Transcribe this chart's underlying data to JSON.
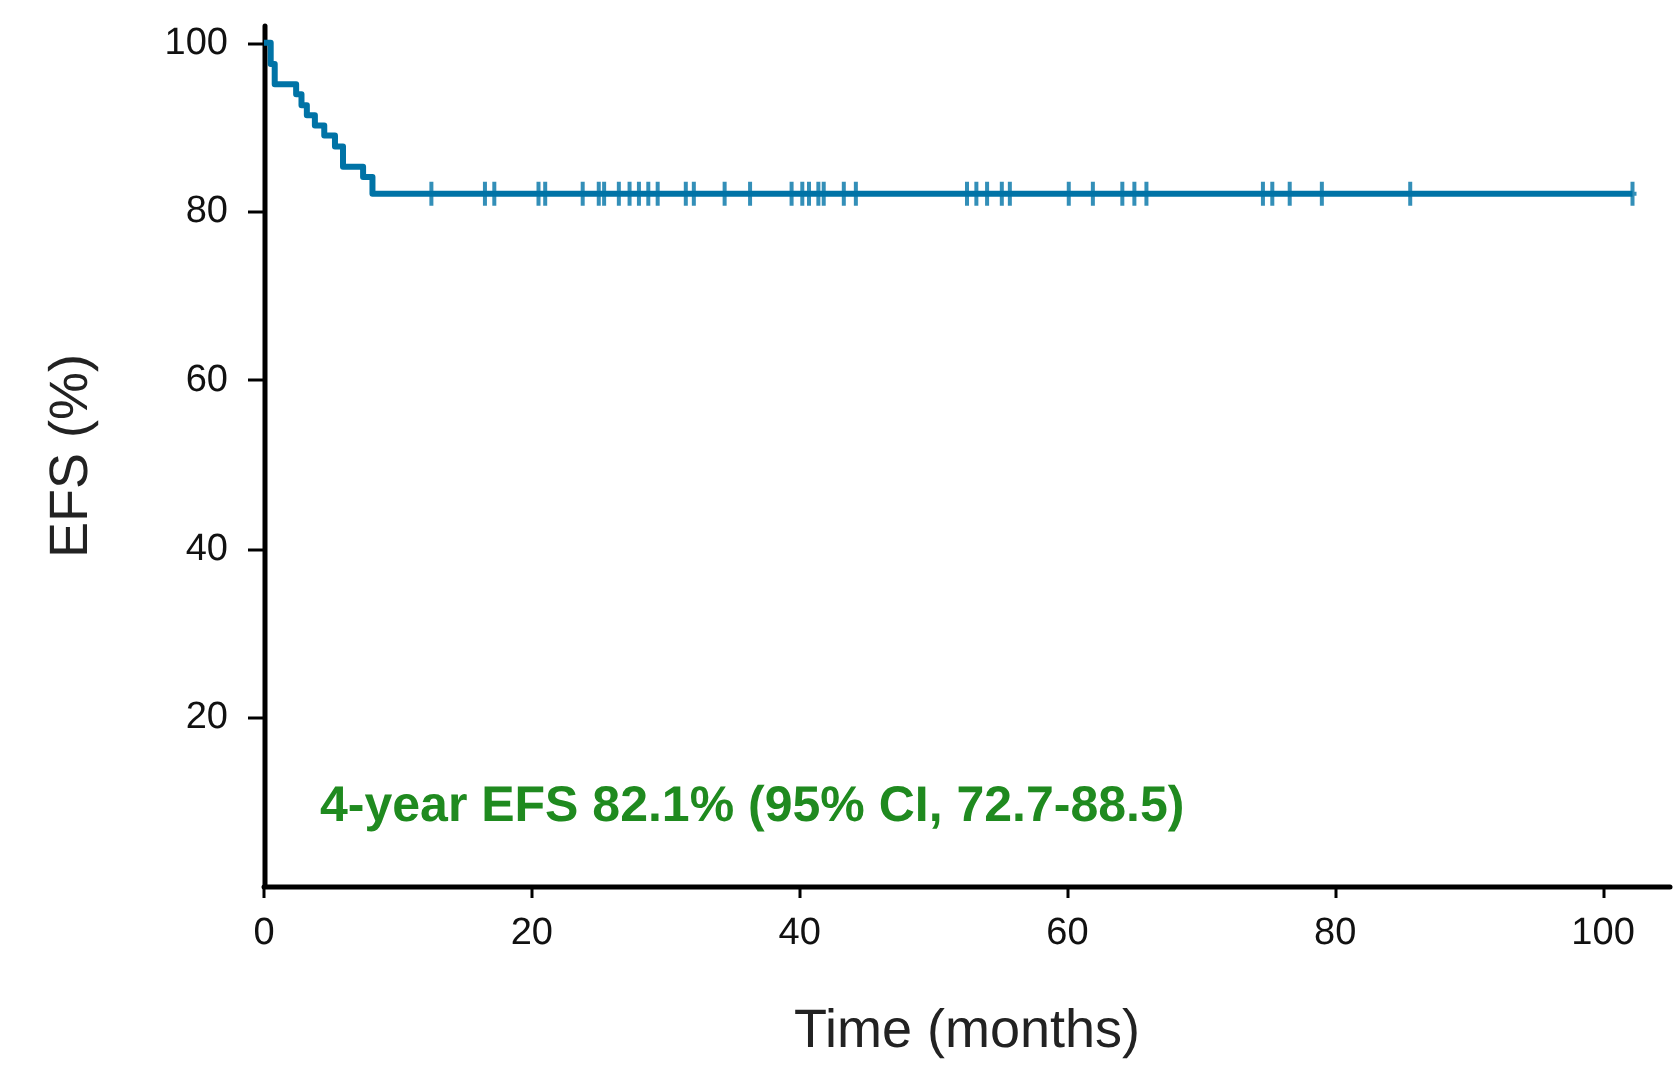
{
  "chart_data": {
    "type": "step",
    "xlabel": "Time (months)",
    "ylabel": "EFS (%)",
    "xlim": [
      0,
      105
    ],
    "xticks": [
      0,
      20,
      40,
      60,
      80,
      100
    ],
    "ylim": [
      0,
      102
    ],
    "yticks": [
      20,
      40,
      60,
      80,
      100
    ],
    "series": [
      {
        "type": "step",
        "color": "#0073a6",
        "marker": "none",
        "x": [
          0,
          0.5,
          0.8,
          2.4,
          2.8,
          3.2,
          3.8,
          4.5,
          5.3,
          5.9,
          7.4,
          8.1,
          102.2
        ],
        "values": [
          100,
          97.5,
          95.1,
          93.9,
          92.6,
          91.4,
          90.2,
          89.0,
          87.7,
          85.3,
          84.1,
          82.1,
          82.1
        ]
      },
      {
        "type": "scatter",
        "color": "#0073a6",
        "marker": "cross",
        "x": [
          12.5,
          16.5,
          17.2,
          20.5,
          21,
          23.8,
          25,
          25.4,
          26.5,
          27.3,
          28,
          28.7,
          29.4,
          31.5,
          32.1,
          34.4,
          36.3,
          39.4,
          40.2,
          40.7,
          41.4,
          41.8,
          43.3,
          44.2,
          52.5,
          53.2,
          54,
          55.1,
          55.7,
          60.1,
          61.9,
          64.1,
          65,
          65.9,
          74.6,
          75.3,
          76.6,
          79,
          85.6,
          102.2
        ],
        "values": [
          82.1,
          82.1,
          82.1,
          82.1,
          82.1,
          82.1,
          82.1,
          82.1,
          82.1,
          82.1,
          82.1,
          82.1,
          82.1,
          82.1,
          82.1,
          82.1,
          82.1,
          82.1,
          82.1,
          82.1,
          82.1,
          82.1,
          82.1,
          82.1,
          82.1,
          82.1,
          82.1,
          82.1,
          82.1,
          82.1,
          82.1,
          82.1,
          82.1,
          82.1,
          82.1,
          82.1,
          82.1,
          82.1,
          82.1,
          82.1
        ]
      }
    ],
    "annotations": [
      "4-year EFS 82.1% (95% CI, 72.7-88.5)"
    ],
    "grid": false
  }
}
